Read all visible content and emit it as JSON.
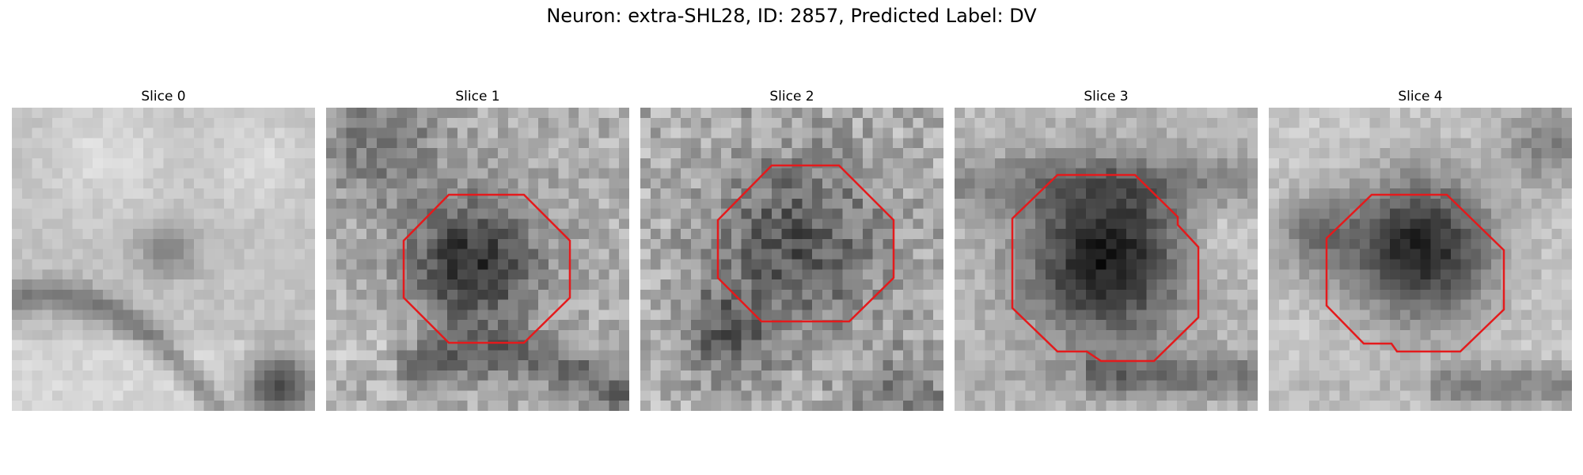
{
  "title": "Neuron: extra-SHL28, ID: 2857, Predicted Label: DV",
  "colors": {
    "contour": "#e41a1c"
  },
  "panels": [
    {
      "label": "Slice 0",
      "has_contour": false
    },
    {
      "label": "Slice 1",
      "has_contour": true
    },
    {
      "label": "Slice 2",
      "has_contour": true
    },
    {
      "label": "Slice 3",
      "has_contour": true
    },
    {
      "label": "Slice 4",
      "has_contour": true
    }
  ]
}
